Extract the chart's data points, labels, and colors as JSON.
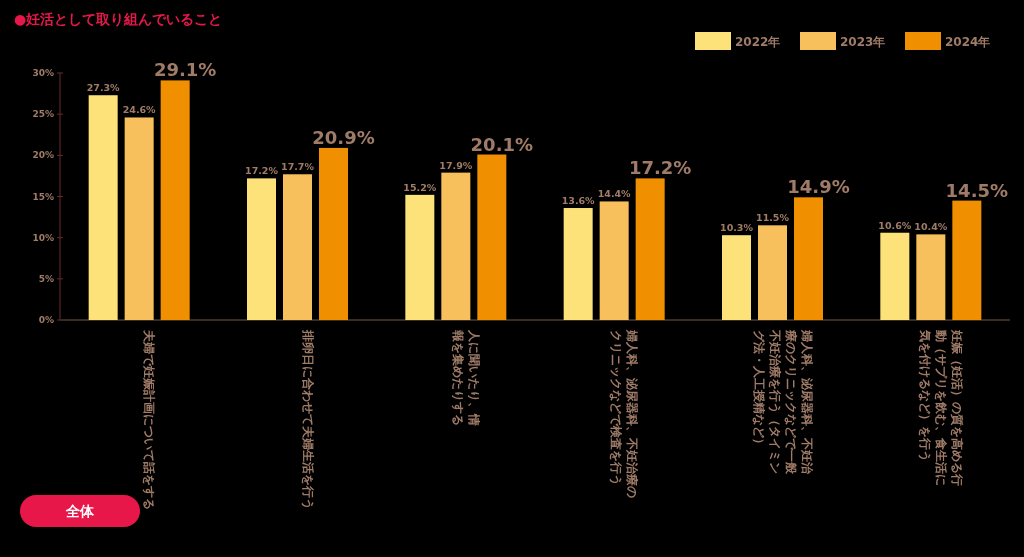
{
  "chart_data": {
    "type": "bar",
    "title": "●妊活として取り組んでいること",
    "categories": [
      "夫婦で妊娠計画について話をする",
      "排卵日に合わせて夫婦生活を行う",
      "人に聞いたり、情報を集めたりする",
      "婦人科、泌尿器科、不妊治療のクリニックなどで検査を行う",
      "婦人科、泌尿器科、不妊治療のクリニックなどで一般不妊治療を行う（タイミング法・人工授精など）",
      "妊娠（妊活）の質を高める行動（サプリを飲む、食生活に気を付けるなど）を行う"
    ],
    "series": [
      {
        "name": "2022年",
        "color": "#fde27a",
        "values": [
          27.3,
          17.2,
          15.2,
          13.6,
          10.3,
          10.6
        ],
        "value_labels": [
          "27.3%",
          "17.2%",
          "15.2%",
          "13.6%",
          "10.3%",
          "10.6%"
        ]
      },
      {
        "name": "2023年",
        "color": "#f7c05c",
        "values": [
          24.6,
          17.7,
          17.9,
          14.4,
          11.5,
          10.4
        ],
        "value_labels": [
          "24.6%",
          "17.7%",
          "17.9%",
          "14.4%",
          "11.5%",
          "10.4%"
        ]
      },
      {
        "name": "2024年",
        "color": "#f09000",
        "values": [
          29.1,
          20.9,
          20.1,
          17.2,
          14.9,
          14.5
        ],
        "value_labels": [
          "29.1%",
          "20.9%",
          "20.1%",
          "17.2%",
          "14.9%",
          "14.5%"
        ]
      }
    ],
    "ylim": [
      0,
      30
    ],
    "yticks": [
      {
        "value": 0,
        "label": "0%"
      },
      {
        "value": 5,
        "label": "5%"
      },
      {
        "value": 10,
        "label": "10%"
      },
      {
        "value": 15,
        "label": "15%"
      },
      {
        "value": 20,
        "label": "20%"
      },
      {
        "value": 25,
        "label": "25%"
      },
      {
        "value": 30,
        "label": "30%"
      }
    ],
    "legend": "top right",
    "grid": false,
    "annotations": [
      "全体"
    ]
  }
}
